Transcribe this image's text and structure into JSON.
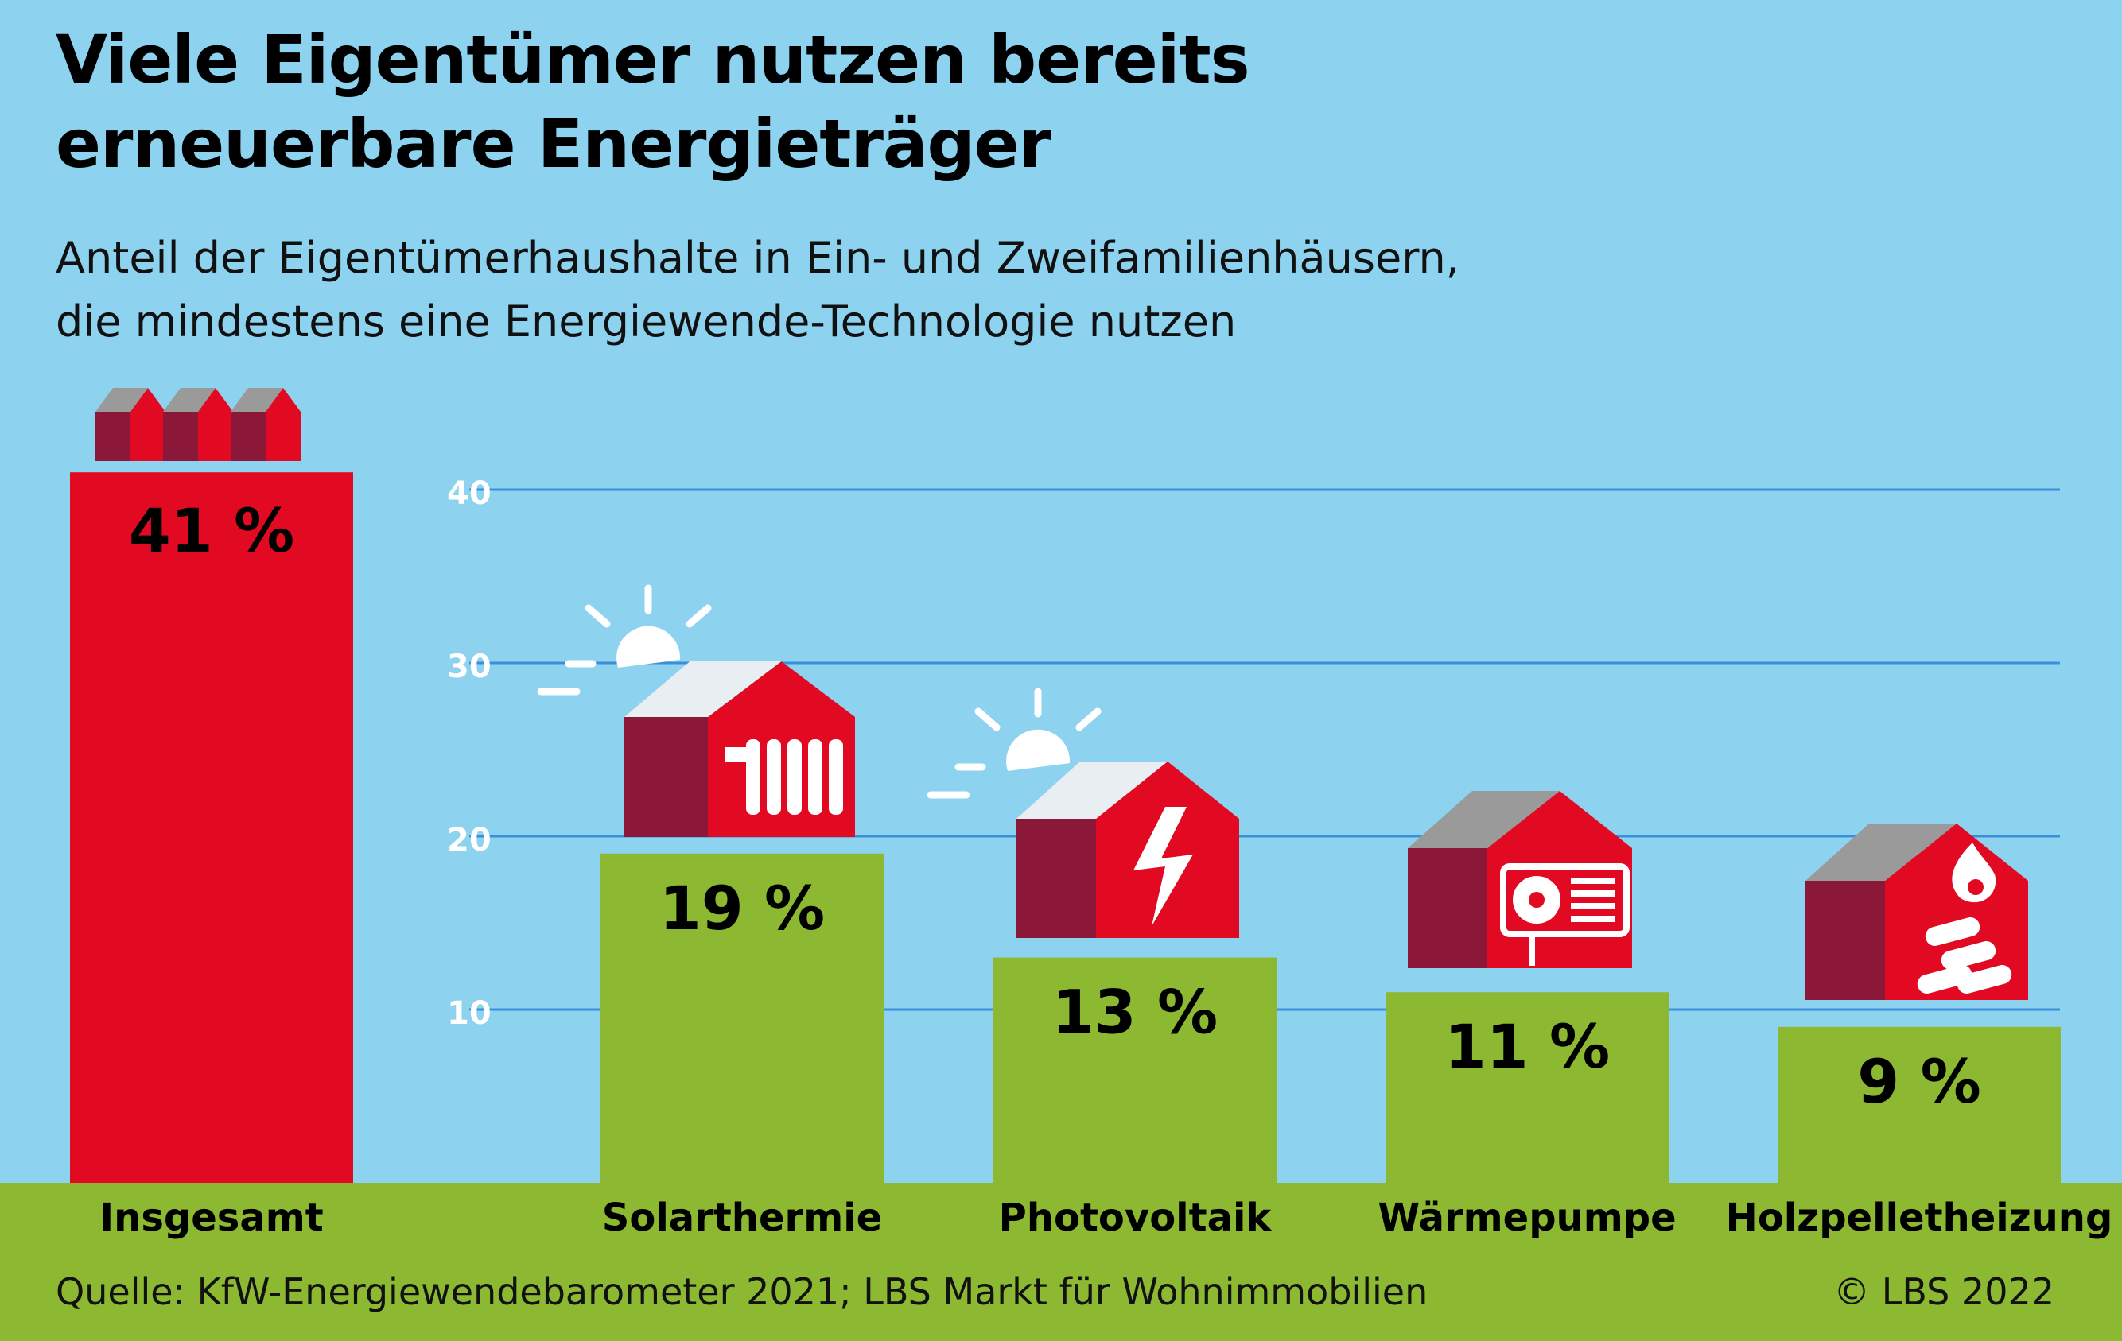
{
  "title_line1": "Viele Eigentümer nutzen bereits",
  "title_line2": "erneuerbare Energieträger",
  "subtitle_line1": "Anteil der Eigentümerhaushalte in Ein- und Zweifamilienhäusern,",
  "subtitle_line2": "die mindestens eine Energiewende-Technologie nutzen",
  "source": "Quelle: KfW-Energiewendebarometer 2021; LBS Markt für Wohnimmobilien",
  "copyright": "© LBS 2022",
  "colors": {
    "background": "#8dd3ef",
    "ground": "#8cb832",
    "total_bar": "#e20a22",
    "tech_bar": "#8cb832",
    "gridline": "#3a8fd9",
    "house_red": "#e20a22",
    "house_dark": "#8b1838",
    "roof_gray": "#9a9a9a"
  },
  "chart_data": {
    "type": "bar",
    "categories": [
      "Insgesamt",
      "Solarthermie",
      "Photovoltaik",
      "Wärmepumpe",
      "Holzpelletheizung"
    ],
    "values": [
      41,
      19,
      13,
      11,
      9
    ],
    "value_labels": [
      "41 %",
      "19 %",
      "13 %",
      "11 %",
      "9 %"
    ],
    "icons": [
      "three-houses-icon",
      "solar-thermal-house-icon",
      "photovoltaic-house-icon",
      "heat-pump-house-icon",
      "wood-pellet-house-icon"
    ],
    "yticks": [
      10,
      20,
      30,
      40
    ],
    "ylim": [
      0,
      41
    ],
    "grid": true,
    "xlabel": "",
    "ylabel": ""
  }
}
